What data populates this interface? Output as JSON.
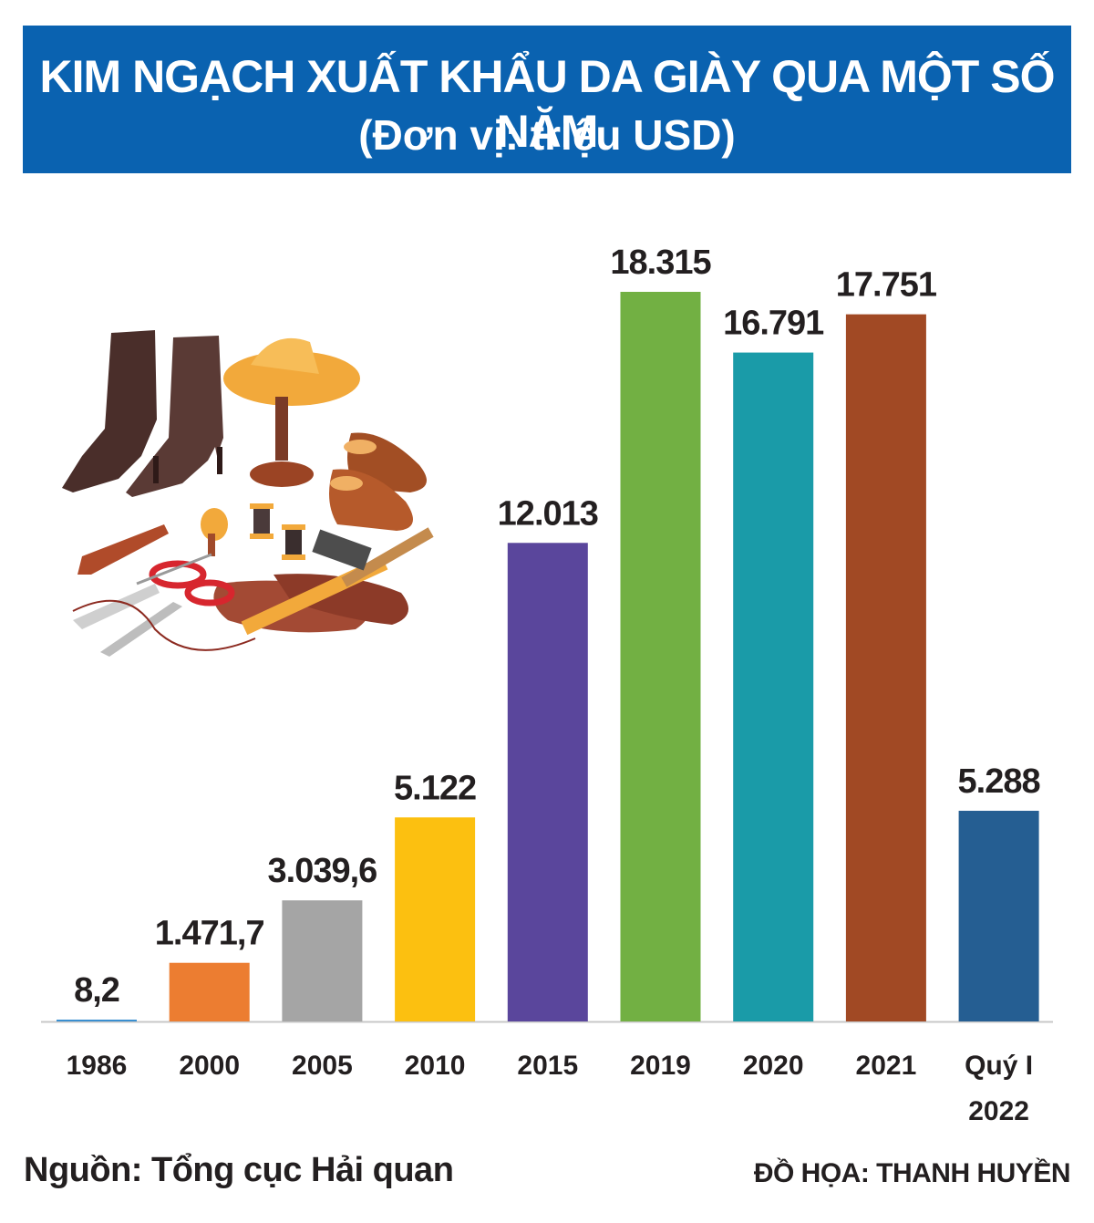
{
  "header": {
    "title": "KIM NGẠCH XUẤT KHẨU DA GIÀY QUA MỘT SỐ NĂM",
    "subtitle": "(Đơn vị: triệu USD)"
  },
  "footer": {
    "source": "Nguồn: Tổng cục Hải quan",
    "credit": "ĐỒ HỌA: THANH HUYỀN"
  },
  "colors": {
    "banner": "#0a62b0",
    "text": "#231f20"
  },
  "illustration_icon": "leather-shoes-and-tools-icon",
  "chart_data": {
    "type": "bar",
    "title": "KIM NGẠCH XUẤT KHẨU DA GIÀY QUA MỘT SỐ NĂM",
    "subtitle": "(Đơn vị: triệu USD)",
    "unit": "triệu USD",
    "categories": [
      "1986",
      "2000",
      "2005",
      "2010",
      "2015",
      "2019",
      "2020",
      "2021",
      "Quý I\n2022"
    ],
    "values": [
      8.2,
      1471.7,
      3039.6,
      5122,
      12013,
      18315,
      16791,
      17751,
      5288
    ],
    "labels": [
      "8,2",
      "1.471,7",
      "3.039,6",
      "5.122",
      "12.013",
      "18.315",
      "16.791",
      "17.751",
      "5.288"
    ],
    "colors": [
      "#3a8fd0",
      "#ec7d31",
      "#a5a5a5",
      "#fcc010",
      "#5a469c",
      "#72b043",
      "#1a9ba8",
      "#a14924",
      "#255e92"
    ],
    "ylim": [
      0,
      18315
    ],
    "grid": false,
    "legend": "none"
  }
}
